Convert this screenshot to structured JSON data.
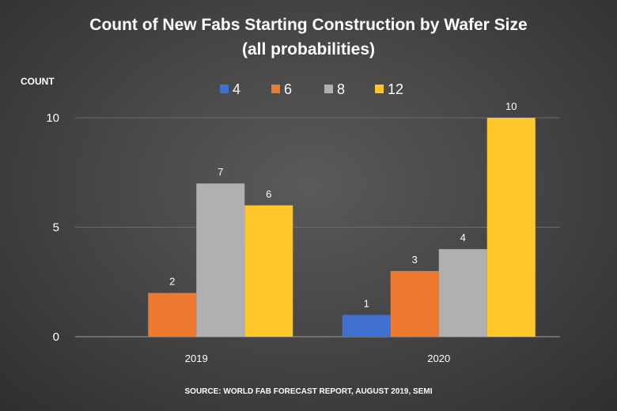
{
  "chart_data": {
    "type": "bar",
    "title": "Count of New Fabs Starting Construction by Wafer Size",
    "subtitle": "(all probabilities)",
    "ylabel": "COUNT",
    "xlabel": "",
    "categories": [
      "2019",
      "2020"
    ],
    "series": [
      {
        "name": "4",
        "color": "#3f6fcf",
        "values": [
          0,
          1
        ]
      },
      {
        "name": "6",
        "color": "#ee7a2f",
        "values": [
          2,
          3
        ]
      },
      {
        "name": "8",
        "color": "#b0b0b0",
        "values": [
          7,
          4
        ]
      },
      {
        "name": "12",
        "color": "#ffc72a",
        "values": [
          6,
          10
        ]
      }
    ],
    "yticks": [
      "0",
      "5",
      "10"
    ],
    "ylim": [
      0,
      10
    ],
    "grid": true,
    "legend_position": "top",
    "data_labels": true,
    "source": "SOURCE: WORLD FAB FORECAST REPORT, AUGUST 2019, SEMI"
  }
}
